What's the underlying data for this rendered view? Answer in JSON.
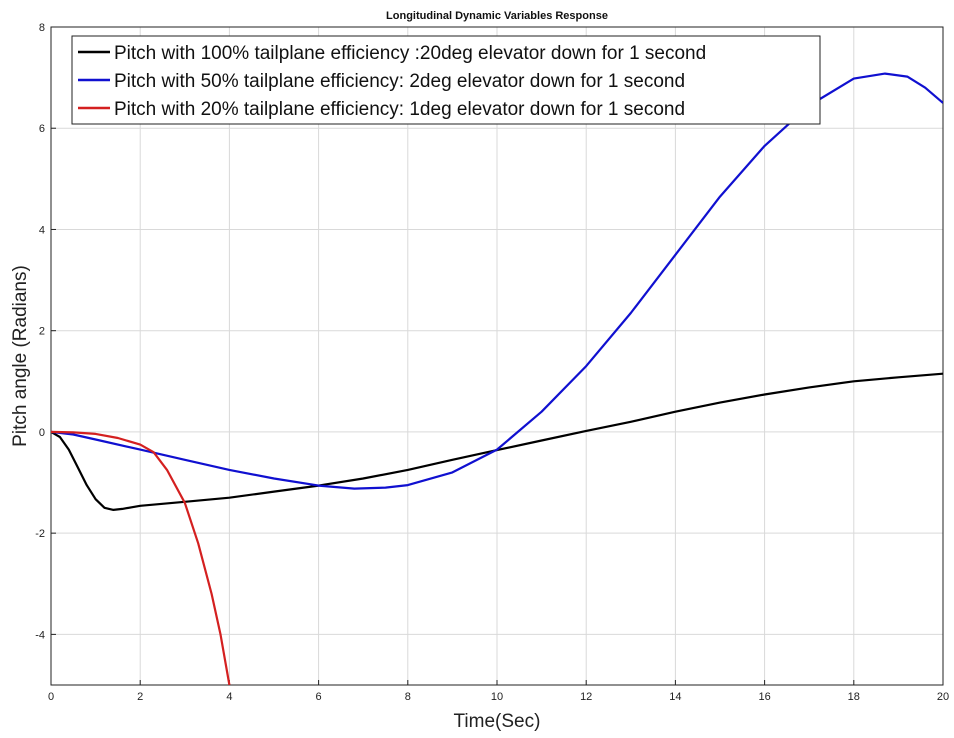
{
  "chart_data": {
    "type": "line",
    "title": "Longitudinal Dynamic Variables Response",
    "xlabel": "Time(Sec)",
    "ylabel": "Pitch angle (Radians)",
    "xlim": [
      0,
      20
    ],
    "ylim": [
      -5,
      8
    ],
    "xticks": [
      0,
      2,
      4,
      6,
      8,
      10,
      12,
      14,
      16,
      18,
      20
    ],
    "yticks": [
      8,
      6,
      4,
      2,
      0,
      -2,
      -4
    ],
    "grid": true,
    "legend_position": "top-left",
    "series": [
      {
        "name": "Pitch with 100% tailplane efficiency :20deg elevator down for 1 second",
        "color": "#000000",
        "points": [
          [
            0,
            0
          ],
          [
            0.2,
            -0.1
          ],
          [
            0.4,
            -0.35
          ],
          [
            0.6,
            -0.7
          ],
          [
            0.8,
            -1.05
          ],
          [
            1.0,
            -1.33
          ],
          [
            1.2,
            -1.5
          ],
          [
            1.4,
            -1.54
          ],
          [
            1.6,
            -1.52
          ],
          [
            2.0,
            -1.46
          ],
          [
            3.0,
            -1.38
          ],
          [
            4.0,
            -1.3
          ],
          [
            5.0,
            -1.18
          ],
          [
            6.0,
            -1.06
          ],
          [
            7.0,
            -0.92
          ],
          [
            8.0,
            -0.75
          ],
          [
            9.0,
            -0.55
          ],
          [
            10.0,
            -0.36
          ],
          [
            11.0,
            -0.17
          ],
          [
            12.0,
            0.02
          ],
          [
            13.0,
            0.2
          ],
          [
            14.0,
            0.4
          ],
          [
            15.0,
            0.58
          ],
          [
            16.0,
            0.74
          ],
          [
            17.0,
            0.88
          ],
          [
            18.0,
            1.0
          ],
          [
            19.0,
            1.08
          ],
          [
            20.0,
            1.15
          ]
        ]
      },
      {
        "name": "Pitch with 50% tailplane efficiency: 2deg elevator down for 1 second",
        "color": "#1010d0",
        "points": [
          [
            0,
            0
          ],
          [
            0.5,
            -0.05
          ],
          [
            1.0,
            -0.15
          ],
          [
            2.0,
            -0.35
          ],
          [
            3.0,
            -0.55
          ],
          [
            4.0,
            -0.75
          ],
          [
            5.0,
            -0.92
          ],
          [
            6.0,
            -1.06
          ],
          [
            6.8,
            -1.12
          ],
          [
            7.5,
            -1.1
          ],
          [
            8.0,
            -1.05
          ],
          [
            9.0,
            -0.8
          ],
          [
            10.0,
            -0.35
          ],
          [
            11.0,
            0.4
          ],
          [
            12.0,
            1.3
          ],
          [
            13.0,
            2.35
          ],
          [
            14.0,
            3.5
          ],
          [
            15.0,
            4.65
          ],
          [
            16.0,
            5.65
          ],
          [
            17.0,
            6.45
          ],
          [
            18.0,
            6.98
          ],
          [
            18.7,
            7.08
          ],
          [
            19.2,
            7.02
          ],
          [
            19.6,
            6.8
          ],
          [
            20.0,
            6.5
          ]
        ]
      },
      {
        "name": "Pitch with 20% tailplane efficiency: 1deg elevator down for 1 second",
        "color": "#d42020",
        "points": [
          [
            0,
            0
          ],
          [
            0.5,
            -0.01
          ],
          [
            1.0,
            -0.04
          ],
          [
            1.5,
            -0.12
          ],
          [
            2.0,
            -0.25
          ],
          [
            2.3,
            -0.4
          ],
          [
            2.6,
            -0.75
          ],
          [
            3.0,
            -1.4
          ],
          [
            3.3,
            -2.2
          ],
          [
            3.6,
            -3.2
          ],
          [
            3.8,
            -4.0
          ],
          [
            4.0,
            -5.0
          ]
        ]
      }
    ]
  }
}
